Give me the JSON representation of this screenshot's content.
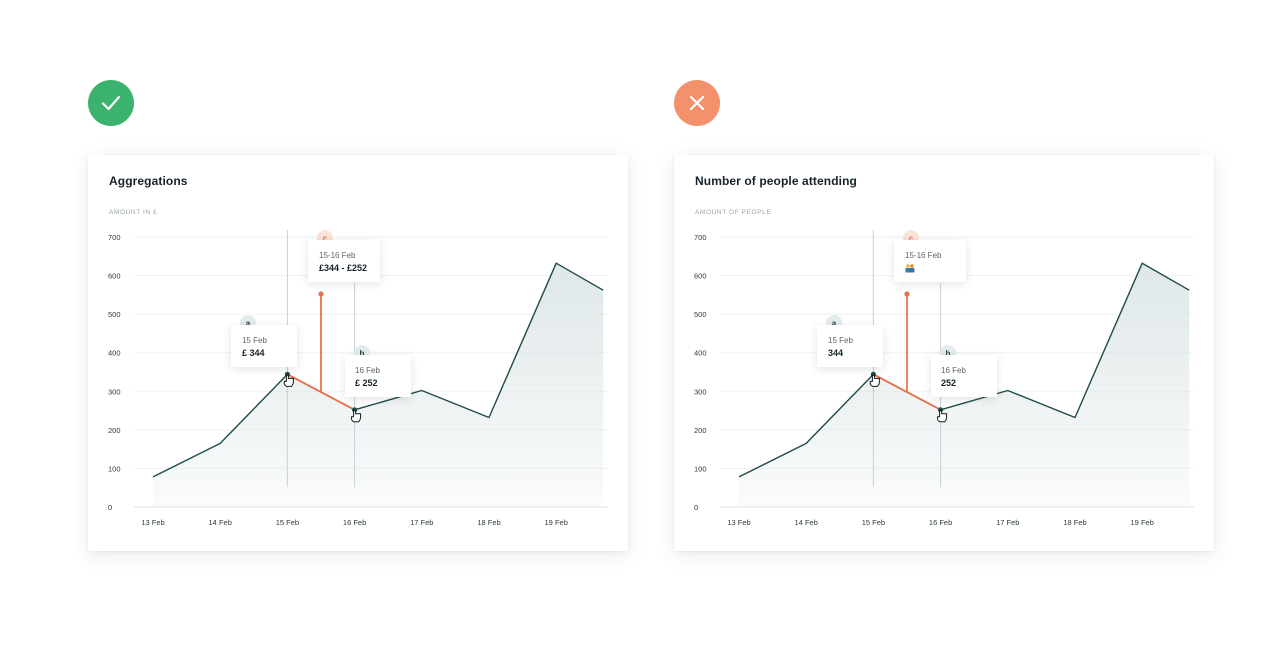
{
  "badges": {
    "good": "check-icon",
    "bad": "close-icon"
  },
  "colors": {
    "good": "#3bb36f",
    "bad": "#f4916d",
    "line": "#1f4a4a",
    "range": "#e8714a",
    "area": "#dfe7e8"
  },
  "x_ticks": [
    "13 Feb",
    "14 Feb",
    "15 Feb",
    "16 Feb",
    "17 Feb",
    "18 Feb",
    "19 Feb"
  ],
  "y_ticks": [
    "0",
    "100",
    "200",
    "300",
    "400",
    "500",
    "600",
    "700"
  ],
  "cards": [
    {
      "title": "Aggregations",
      "axis_caption": "AMOUNT IN £",
      "tip_a": {
        "marker": "a",
        "date": "15 Feb",
        "value": "£ 344"
      },
      "tip_b": {
        "marker": "b",
        "date": "16 Feb",
        "value": "£ 252"
      },
      "tip_c": {
        "marker": "c",
        "date": "15-16 Feb",
        "value": "£344 - £252"
      }
    },
    {
      "title": "Number of people attending",
      "axis_caption": "AMOUNT OF PEOPLE",
      "tip_a": {
        "marker": "a",
        "date": "15 Feb",
        "value": "344"
      },
      "tip_b": {
        "marker": "b",
        "date": "16 Feb",
        "value": "252"
      },
      "tip_c": {
        "marker": "c",
        "date": "15-16 Feb",
        "value": "",
        "icon": "people-emoji-icon"
      }
    }
  ],
  "chart_data": [
    {
      "type": "area",
      "title": "Aggregations",
      "ylabel": "AMOUNT IN £",
      "x": [
        "13 Feb",
        "14 Feb",
        "15 Feb",
        "16 Feb",
        "17 Feb",
        "18 Feb",
        "19 Feb"
      ],
      "points": [
        {
          "x": "13 Feb",
          "y": 78
        },
        {
          "x": "14 Feb",
          "y": 165
        },
        {
          "x": "15 Feb",
          "y": 344
        },
        {
          "x": "16 Feb",
          "y": 252
        },
        {
          "x": "17 Feb",
          "y": 302
        },
        {
          "x": "18 Feb",
          "y": 232
        },
        {
          "x": "19 Feb",
          "y": 632
        },
        {
          "x": "19.7 Feb",
          "y": 562
        }
      ],
      "ylim": [
        0,
        700
      ],
      "grid": true,
      "annotations": [
        {
          "label": "a",
          "x": "15 Feb",
          "y": 344
        },
        {
          "label": "b",
          "x": "16 Feb",
          "y": 252
        },
        {
          "label": "c",
          "range": [
            "15 Feb",
            "16 Feb"
          ]
        }
      ]
    },
    {
      "type": "area",
      "title": "Number of people attending",
      "ylabel": "AMOUNT OF PEOPLE",
      "x": [
        "13 Feb",
        "14 Feb",
        "15 Feb",
        "16 Feb",
        "17 Feb",
        "18 Feb",
        "19 Feb"
      ],
      "points": [
        {
          "x": "13 Feb",
          "y": 78
        },
        {
          "x": "14 Feb",
          "y": 165
        },
        {
          "x": "15 Feb",
          "y": 344
        },
        {
          "x": "16 Feb",
          "y": 252
        },
        {
          "x": "17 Feb",
          "y": 302
        },
        {
          "x": "18 Feb",
          "y": 232
        },
        {
          "x": "19 Feb",
          "y": 632
        },
        {
          "x": "19.7 Feb",
          "y": 562
        }
      ],
      "ylim": [
        0,
        700
      ],
      "grid": true,
      "annotations": [
        {
          "label": "a",
          "x": "15 Feb",
          "y": 344
        },
        {
          "label": "b",
          "x": "16 Feb",
          "y": 252
        },
        {
          "label": "c",
          "range": [
            "15 Feb",
            "16 Feb"
          ]
        }
      ]
    }
  ]
}
